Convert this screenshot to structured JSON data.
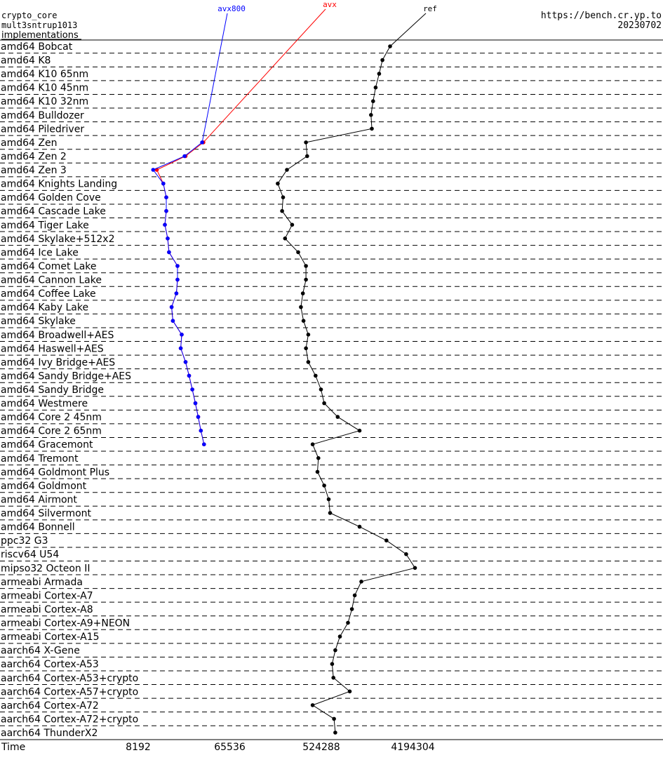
{
  "header": {
    "line1": "crypto_core",
    "line2": "mult3sntrup1013",
    "line3": "implementations",
    "url": "https://bench.cr.yp.to",
    "date": "20230702"
  },
  "chart_data": {
    "type": "line",
    "xlabel": "Time",
    "x_scale": "log2",
    "x_ticks": [
      8192,
      65536,
      524288,
      4194304
    ],
    "series": [
      {
        "name": "avx800",
        "color": "#0000ff"
      },
      {
        "name": "avx",
        "color": "#ff0000"
      },
      {
        "name": "ref",
        "color": "#000000"
      }
    ],
    "categories": [
      {
        "label": "amd64 Bobcat",
        "ref": 2500000
      },
      {
        "label": "amd64 K8",
        "ref": 2100000
      },
      {
        "label": "amd64 K10 65nm",
        "ref": 1950000
      },
      {
        "label": "amd64 K10 45nm",
        "ref": 1800000
      },
      {
        "label": "amd64 K10 32nm",
        "ref": 1700000
      },
      {
        "label": "amd64 Bulldozer",
        "ref": 1620000
      },
      {
        "label": "amd64 Piledriver",
        "ref": 1650000
      },
      {
        "label": "amd64 Zen",
        "ref": 370000,
        "avx": 36000,
        "avx800": 35000
      },
      {
        "label": "amd64 Zen 2",
        "ref": 380000,
        "avx": 24000,
        "avx800": 23500
      },
      {
        "label": "amd64 Zen 3",
        "ref": 240000,
        "avx": 12500,
        "avx800": 11500
      },
      {
        "label": "amd64 Knights Landing",
        "ref": 195000,
        "avx": 14500,
        "avx800": 14500
      },
      {
        "label": "amd64 Golden Cove",
        "ref": 220000,
        "avx": 15500,
        "avx800": 15500
      },
      {
        "label": "amd64 Cascade Lake",
        "ref": 215000,
        "avx": 15500,
        "avx800": 15500
      },
      {
        "label": "amd64 Tiger Lake",
        "ref": 270000,
        "avx": 15000,
        "avx800": 15000
      },
      {
        "label": "amd64 Skylake+512x2",
        "ref": 230000,
        "avx": 16000,
        "avx800": 16000
      },
      {
        "label": "amd64 Ice Lake",
        "ref": 310000,
        "avx": 16500,
        "avx800": 16500
      },
      {
        "label": "amd64 Comet Lake",
        "ref": 370000,
        "avx": 20000,
        "avx800": 20000
      },
      {
        "label": "amd64 Cannon Lake",
        "ref": 370000,
        "avx": 20000,
        "avx800": 20000
      },
      {
        "label": "amd64 Coffee Lake",
        "ref": 345000,
        "avx": 19500,
        "avx800": 19500
      },
      {
        "label": "amd64 Kaby Lake",
        "ref": 330000,
        "avx": 17500,
        "avx800": 17500
      },
      {
        "label": "amd64 Skylake",
        "ref": 350000,
        "avx": 18000,
        "avx800": 18000
      },
      {
        "label": "amd64 Broadwell+AES",
        "ref": 390000,
        "avx": 22000,
        "avx800": 22000
      },
      {
        "label": "amd64 Haswell+AES",
        "ref": 370000,
        "avx": 21500,
        "avx800": 21500
      },
      {
        "label": "amd64 Ivy Bridge+AES",
        "ref": 390000,
        "avx": 24000,
        "avx800": 24000
      },
      {
        "label": "amd64 Sandy Bridge+AES",
        "ref": 460000,
        "avx": 26000,
        "avx800": 26000
      },
      {
        "label": "amd64 Sandy Bridge",
        "ref": 520000,
        "avx": 28000,
        "avx800": 28000
      },
      {
        "label": "amd64 Westmere",
        "ref": 560000,
        "avx": 30000,
        "avx800": 30000
      },
      {
        "label": "amd64 Core 2 45nm",
        "ref": 760000,
        "avx": 32000,
        "avx800": 32000
      },
      {
        "label": "amd64 Core 2 65nm",
        "ref": 1250000,
        "avx": 34000,
        "avx800": 34000
      },
      {
        "label": "amd64 Gracemont",
        "ref": 430000,
        "avx": 36500,
        "avx800": 36500
      },
      {
        "label": "amd64 Tremont",
        "ref": 490000
      },
      {
        "label": "amd64 Goldmont Plus",
        "ref": 480000
      },
      {
        "label": "amd64 Goldmont",
        "ref": 560000
      },
      {
        "label": "amd64 Airmont",
        "ref": 620000
      },
      {
        "label": "amd64 Silvermont",
        "ref": 640000
      },
      {
        "label": "amd64 Bonnell",
        "ref": 1250000
      },
      {
        "label": "ppc32 G3",
        "ref": 2300000
      },
      {
        "label": "riscv64 U54",
        "ref": 3600000
      },
      {
        "label": "mipso32 Octeon II",
        "ref": 4400000
      },
      {
        "label": "armeabi Armada",
        "ref": 1300000
      },
      {
        "label": "armeabi Cortex-A7",
        "ref": 1120000
      },
      {
        "label": "armeabi Cortex-A8",
        "ref": 1050000
      },
      {
        "label": "armeabi Cortex-A9+NEON",
        "ref": 960000
      },
      {
        "label": "armeabi Cortex-A15",
        "ref": 800000
      },
      {
        "label": "aarch64 X-Gene",
        "ref": 720000
      },
      {
        "label": "aarch64 Cortex-A53",
        "ref": 670000
      },
      {
        "label": "aarch64 Cortex-A53+crypto",
        "ref": 690000
      },
      {
        "label": "aarch64 Cortex-A57+crypto",
        "ref": 1000000
      },
      {
        "label": "aarch64 Cortex-A72",
        "ref": 430000
      },
      {
        "label": "aarch64 Cortex-A72+crypto",
        "ref": 700000
      },
      {
        "label": "aarch64 ThunderX2",
        "ref": 720000
      }
    ]
  }
}
